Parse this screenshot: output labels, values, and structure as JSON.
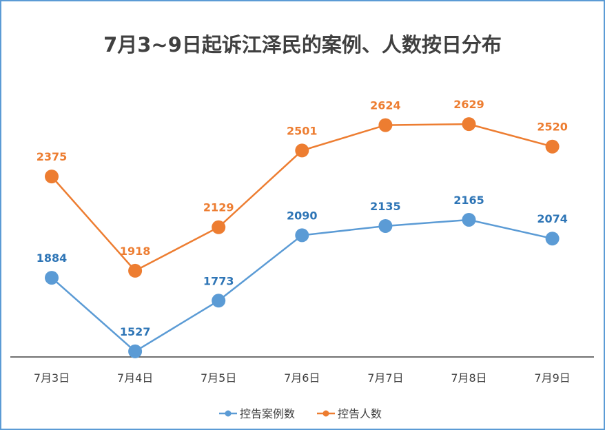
{
  "chart_data": {
    "type": "line",
    "title": "7月3~9日起诉江泽民的案例、人数按日分布",
    "xlabel": "",
    "ylabel": "",
    "categories": [
      "7月3日",
      "7月4日",
      "7月5日",
      "7月6日",
      "7月7日",
      "7月8日",
      "7月9日"
    ],
    "ylim": [
      1500,
      2900
    ],
    "grid": false,
    "legend": "bottom",
    "series": [
      {
        "name": "控告案例数",
        "values": [
          1884,
          1527,
          1773,
          2090,
          2135,
          2165,
          2074
        ],
        "color": "#5B9BD5",
        "label_color": "#2E75B6"
      },
      {
        "name": "控告人数",
        "values": [
          2375,
          1918,
          2129,
          2501,
          2624,
          2629,
          2520
        ],
        "color": "#ED7D31",
        "label_color": "#ED7D31"
      }
    ]
  }
}
